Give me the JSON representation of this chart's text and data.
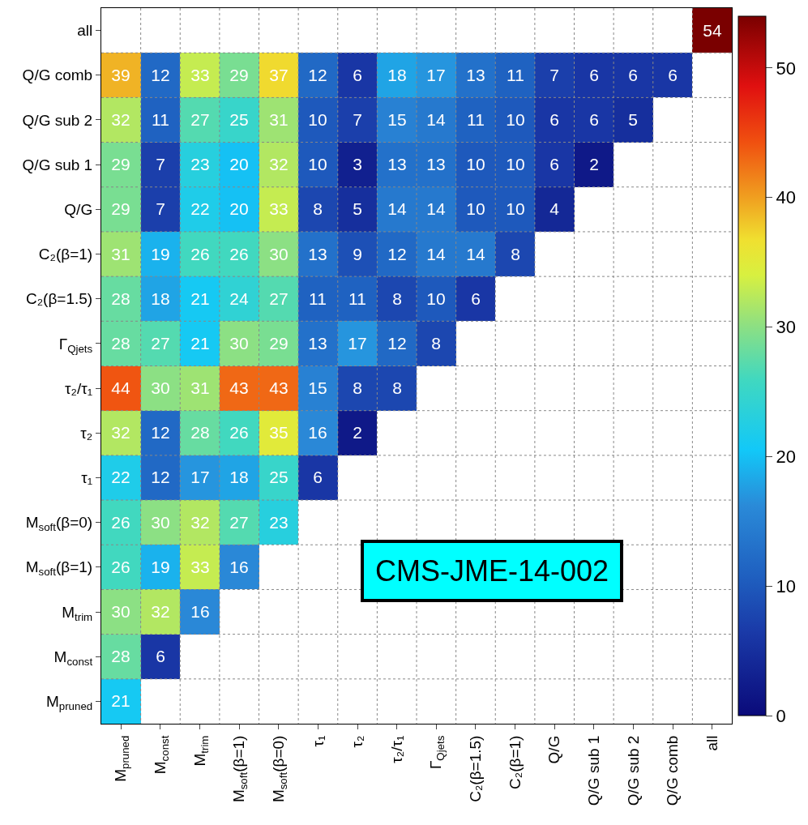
{
  "chart_data": {
    "type": "heatmap",
    "categories": [
      "M$_{pruned}$",
      "M$_{const}$",
      "M$_{trim}$",
      "M$_{soft}$(β=1)",
      "M$_{soft}$(β=0)",
      "τ₁",
      "τ₂",
      "τ₂/τ₁",
      "Γ$_{Qjets}$",
      "C₂(β=1.5)",
      "C₂(β=1)",
      "Q/G",
      "Q/G sub 1",
      "Q/G sub 2",
      "Q/G comb",
      "all"
    ],
    "y_categories": [
      "all",
      "Q/G comb",
      "Q/G sub 2",
      "Q/G sub 1",
      "Q/G",
      "C₂(β=1)",
      "C₂(β=1.5)",
      "Γ$_{Qjets}$",
      "τ₂/τ₁",
      "τ₂",
      "τ₁",
      "M$_{soft}$(β=0)",
      "M$_{soft}$(β=1)",
      "M$_{trim}$",
      "M$_{const}$",
      "M$_{pruned}$"
    ],
    "cells": [
      [
        null,
        null,
        null,
        null,
        null,
        null,
        null,
        null,
        null,
        null,
        null,
        null,
        null,
        null,
        null,
        54
      ],
      [
        39,
        12,
        33,
        29,
        37,
        12,
        6,
        18,
        17,
        13,
        11,
        7,
        6,
        6,
        6,
        null
      ],
      [
        32,
        11,
        27,
        25,
        31,
        10,
        7,
        15,
        14,
        11,
        10,
        6,
        6,
        5,
        null,
        null
      ],
      [
        29,
        7,
        23,
        20,
        32,
        10,
        3,
        13,
        13,
        10,
        10,
        6,
        2,
        null,
        null,
        null
      ],
      [
        29,
        7,
        22,
        20,
        33,
        8,
        5,
        14,
        14,
        10,
        10,
        4,
        null,
        null,
        null,
        null
      ],
      [
        31,
        19,
        26,
        26,
        30,
        13,
        9,
        12,
        14,
        14,
        8,
        null,
        null,
        null,
        null,
        null
      ],
      [
        28,
        18,
        21,
        24,
        27,
        11,
        11,
        8,
        10,
        6,
        null,
        null,
        null,
        null,
        null,
        null
      ],
      [
        28,
        27,
        21,
        30,
        29,
        13,
        17,
        12,
        8,
        null,
        null,
        null,
        null,
        null,
        null,
        null
      ],
      [
        44,
        30,
        31,
        43,
        43,
        15,
        8,
        8,
        null,
        null,
        null,
        null,
        null,
        null,
        null,
        null
      ],
      [
        32,
        12,
        28,
        26,
        35,
        16,
        2,
        null,
        null,
        null,
        null,
        null,
        null,
        null,
        null,
        null
      ],
      [
        22,
        12,
        17,
        18,
        25,
        6,
        null,
        null,
        null,
        null,
        null,
        null,
        null,
        null,
        null,
        null
      ],
      [
        26,
        30,
        32,
        27,
        23,
        null,
        null,
        null,
        null,
        null,
        null,
        null,
        null,
        null,
        null,
        null
      ],
      [
        26,
        19,
        33,
        16,
        null,
        null,
        null,
        null,
        null,
        null,
        null,
        null,
        null,
        null,
        null,
        null
      ],
      [
        30,
        32,
        16,
        null,
        null,
        null,
        null,
        null,
        null,
        null,
        null,
        null,
        null,
        null,
        null,
        null
      ],
      [
        28,
        6,
        null,
        null,
        null,
        null,
        null,
        null,
        null,
        null,
        null,
        null,
        null,
        null,
        null,
        null
      ],
      [
        21,
        null,
        null,
        null,
        null,
        null,
        null,
        null,
        null,
        null,
        null,
        null,
        null,
        null,
        null,
        null
      ]
    ],
    "clim": [
      0,
      54
    ],
    "cticks": [
      0,
      10,
      20,
      30,
      40,
      50
    ],
    "data_labels": true,
    "grid": true,
    "annotations": [
      "CMS-JME-14-002"
    ]
  }
}
